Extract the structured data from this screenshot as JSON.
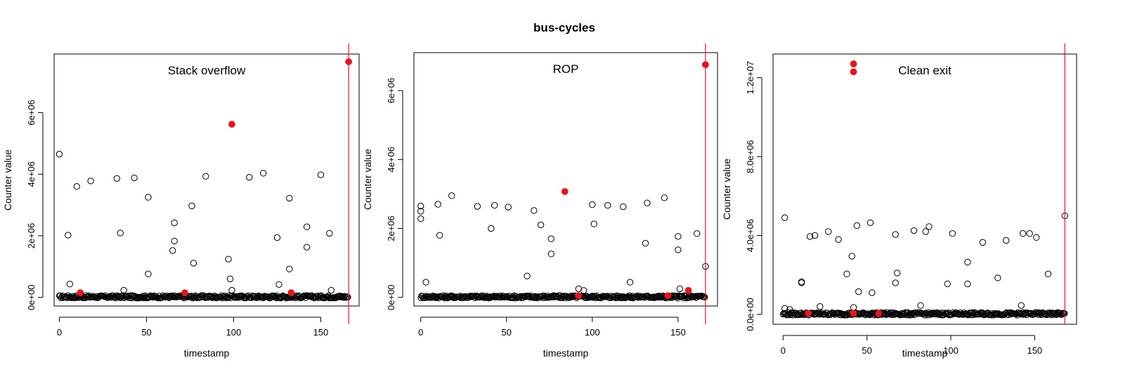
{
  "figure_title": "bus-cycles",
  "colors": {
    "highlight": "#e8141b",
    "vline": "#e8141b",
    "point": "#000000",
    "frame": "#000000"
  },
  "chart_data": [
    {
      "type": "scatter",
      "title": "Stack overflow",
      "xlabel": "timestamp",
      "ylabel": "Counter value",
      "xlim": [
        -3,
        172
      ],
      "ylim": [
        -280000,
        7900000
      ],
      "xticks": [
        0,
        50,
        100,
        150
      ],
      "xtick_labels": [
        "0",
        "50",
        "100",
        "150"
      ],
      "yticks": [
        0,
        2000000,
        4000000,
        6000000
      ],
      "ytick_labels": [
        "0e+00",
        "2e+06",
        "4e+06",
        "6e+06"
      ],
      "grid": false,
      "vline_x": 166,
      "series": [
        {
          "marker": "open-circle",
          "x": [
            0,
            5,
            6,
            10,
            18,
            33,
            35,
            37,
            43,
            51,
            51,
            65,
            66,
            66,
            76,
            77,
            84,
            97,
            98,
            99,
            109,
            117,
            125,
            126,
            132,
            132,
            142,
            142,
            150,
            155,
            156
          ],
          "y": [
            4650000,
            2020000,
            430000,
            3600000,
            3780000,
            3860000,
            2090000,
            230000,
            3880000,
            3250000,
            760000,
            1520000,
            2420000,
            1830000,
            2970000,
            1110000,
            3930000,
            1240000,
            600000,
            230000,
            3900000,
            4030000,
            1940000,
            420000,
            3220000,
            920000,
            2290000,
            1630000,
            3980000,
            2080000,
            230000
          ]
        },
        {
          "marker": "baseline-dense",
          "x_range": [
            0,
            166
          ],
          "y": 0
        },
        {
          "marker": "filled-highlight",
          "x": [
            12,
            72,
            99,
            133,
            166
          ],
          "y": [
            150000,
            150000,
            5620000,
            150000,
            7650000
          ]
        }
      ]
    },
    {
      "type": "scatter",
      "title": "ROP",
      "xlabel": "timestamp",
      "ylabel": "Counter value",
      "xlim": [
        -4,
        173
      ],
      "ylim": [
        -250000,
        7100000
      ],
      "xticks": [
        0,
        50,
        100,
        150
      ],
      "xtick_labels": [
        "0",
        "50",
        "100",
        "150"
      ],
      "yticks": [
        0,
        2000000,
        4000000,
        6000000
      ],
      "ytick_labels": [
        "0e+00",
        "2e+06",
        "4e+06",
        "6e+06"
      ],
      "grid": false,
      "vline_x": 166,
      "series": [
        {
          "marker": "open-circle",
          "x": [
            0,
            0,
            0,
            3,
            10,
            11,
            18,
            33,
            41,
            43,
            51,
            62,
            66,
            70,
            76,
            76,
            92,
            95,
            100,
            101,
            109,
            118,
            122,
            131,
            132,
            142,
            150,
            150,
            151,
            161,
            166
          ],
          "y": [
            2650000,
            2500000,
            2280000,
            440000,
            2700000,
            1800000,
            2950000,
            2640000,
            2000000,
            2670000,
            2620000,
            620000,
            2520000,
            2100000,
            1700000,
            1260000,
            250000,
            200000,
            2690000,
            2130000,
            2670000,
            2630000,
            440000,
            1570000,
            2740000,
            2890000,
            1770000,
            1380000,
            250000,
            1850000,
            900000
          ]
        },
        {
          "marker": "baseline-dense",
          "x_range": [
            0,
            166
          ],
          "y": 0
        },
        {
          "marker": "filled-highlight",
          "x": [
            84,
            92,
            144,
            156,
            166
          ],
          "y": [
            3070000,
            50000,
            50000,
            200000,
            6750000
          ]
        }
      ]
    },
    {
      "type": "scatter",
      "title": "Clean exit",
      "xlabel": "timestamp",
      "ylabel": "Counter value",
      "xlim": [
        -6,
        175
      ],
      "ylim": [
        -500000,
        13200000
      ],
      "xticks": [
        0,
        50,
        100,
        150
      ],
      "xtick_labels": [
        "0",
        "50",
        "100",
        "150"
      ],
      "yticks": [
        0,
        4000000,
        8000000,
        12000000
      ],
      "ytick_labels": [
        "0.0e+00",
        "4.0e+06",
        "8.0e+06",
        "1.2e+07"
      ],
      "grid": false,
      "vline_x": 168,
      "series": [
        {
          "marker": "open-circle",
          "x": [
            1,
            1,
            4,
            11,
            11,
            16,
            19,
            22,
            27,
            33,
            38,
            41,
            42,
            44,
            45,
            52,
            53,
            67,
            67,
            68,
            78,
            82,
            85,
            87,
            98,
            101,
            110,
            110,
            119,
            128,
            133,
            142,
            143,
            147,
            151,
            158,
            168
          ],
          "y": [
            4900000,
            300000,
            250000,
            1650000,
            1600000,
            3950000,
            4000000,
            400000,
            4200000,
            3800000,
            2050000,
            2950000,
            350000,
            4500000,
            1150000,
            4650000,
            1100000,
            4050000,
            1600000,
            2100000,
            4250000,
            450000,
            4200000,
            4450000,
            1550000,
            4100000,
            2650000,
            1550000,
            3650000,
            1850000,
            3750000,
            450000,
            4100000,
            4100000,
            3900000,
            2050000,
            5000000
          ]
        },
        {
          "marker": "baseline-dense",
          "x_range": [
            0,
            168
          ],
          "y": 0
        },
        {
          "marker": "filled-highlight",
          "x": [
            42,
            42,
            15,
            42,
            57
          ],
          "y": [
            12700000,
            12300000,
            50000,
            50000,
            50000
          ]
        }
      ]
    }
  ]
}
